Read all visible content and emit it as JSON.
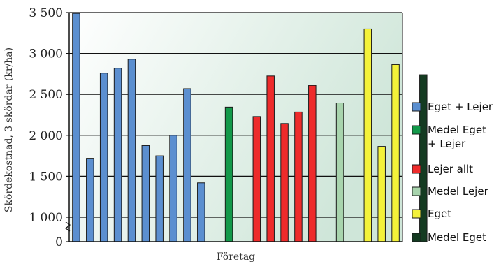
{
  "chart_data": {
    "type": "bar",
    "title": "",
    "xlabel": "Företag",
    "ylabel": "Skördekostnad, 3 skördar (kr/ha)",
    "ylim": [
      1000,
      3500
    ],
    "axis_break": true,
    "yticks": [
      {
        "value": 3500,
        "label": "3 500"
      },
      {
        "value": 3000,
        "label": "3 000"
      },
      {
        "value": 2500,
        "label": "2 500"
      },
      {
        "value": 2000,
        "label": "2 000"
      },
      {
        "value": 1500,
        "label": "1 500"
      },
      {
        "value": 1000,
        "label": "1 000"
      },
      {
        "value": 0,
        "label": "0"
      }
    ],
    "grid": true,
    "legend_position": "right",
    "series": [
      {
        "name": "Eget + Lejer",
        "color": "#5b8fd0",
        "values": [
          3490,
          1720,
          2760,
          2820,
          2930,
          1875,
          1750,
          2000,
          2570,
          1420
        ]
      },
      {
        "name": "Medel Eget\n+ Lejer",
        "color": "#13994a",
        "values": [
          2345
        ]
      },
      {
        "name": "Lejer allt",
        "color": "#ee2b2b",
        "values": [
          2230,
          2725,
          2145,
          2285,
          2610
        ]
      },
      {
        "name": "Medel Lejer",
        "color": "#a8d4ad",
        "values": [
          2395
        ]
      },
      {
        "name": "Eget",
        "color": "#f4f23a",
        "values": [
          3300,
          1865,
          2865
        ]
      },
      {
        "name": "Medel Eget",
        "color": "#143b21",
        "values": [
          2740
        ]
      }
    ]
  }
}
